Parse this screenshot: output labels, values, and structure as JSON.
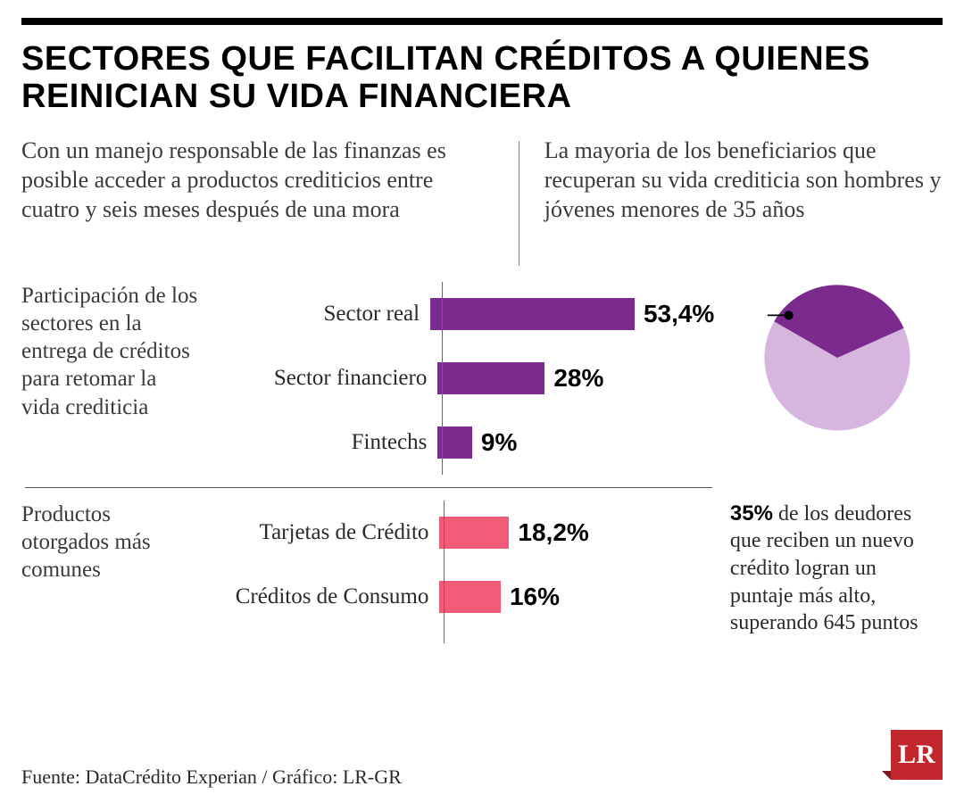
{
  "title": "SECTORES QUE FACILITAN CRÉDITOS A QUIENES REINICIAN SU VIDA FINANCIERA",
  "intro_left": "Con un manejo responsable de las finanzas es posible acceder a productos crediticios entre cuatro y seis meses después de una mora",
  "intro_right": "La mayoria de los beneficiarios que recuperan su vida crediticia son hombres y jóvenes menores de 35 años",
  "section1": {
    "label": "Participación de los sectores en la entrega de créditos para retomar la vida crediticia",
    "type": "bar",
    "max_pct": 70,
    "bar_color": "#7b2a8e",
    "bars": [
      {
        "label": "Sector real",
        "value": 53.4,
        "display": "53,4%"
      },
      {
        "label": "Sector financiero",
        "value": 28,
        "display": "28%"
      },
      {
        "label": "Fintechs",
        "value": 9,
        "display": "9%"
      }
    ]
  },
  "section2": {
    "label": "Productos otorgados más comunes",
    "type": "bar",
    "max_pct": 70,
    "bar_color": "#ef5b78",
    "bars": [
      {
        "label": "Tarjetas de Crédito",
        "value": 18.2,
        "display": "18,2%"
      },
      {
        "label": "Créditos de Consumo",
        "value": 16,
        "display": "16%"
      }
    ]
  },
  "pie": {
    "type": "pie",
    "value_pct": 35,
    "slice_color": "#7b2a8e",
    "rest_color": "#d6b6df",
    "bold": "35%",
    "caption_rest": " de los deudores que reciben un nuevo crédito logran un puntaje más alto, superando 645 puntos"
  },
  "source": "Fuente: DataCrédito Experian / Gráfico: LR-GR",
  "logo_text": "LR",
  "colors": {
    "rule": "#000000",
    "text": "#3a3a3a",
    "logo_bg": "#c1272d"
  }
}
